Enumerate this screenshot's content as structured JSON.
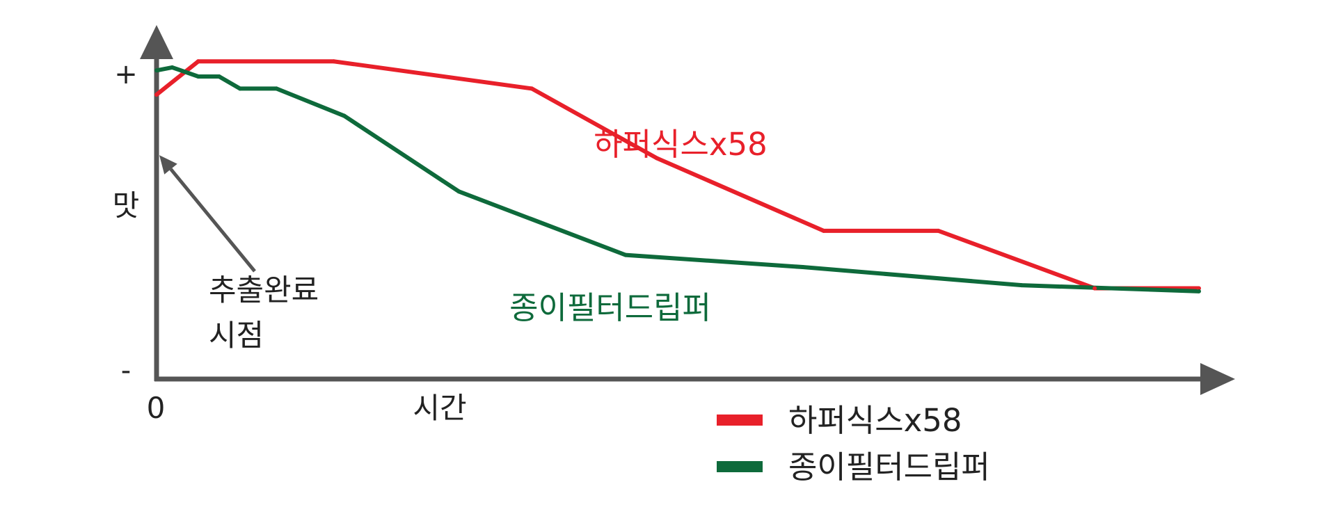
{
  "chart_data": {
    "type": "line",
    "title": "",
    "xlabel": "시간",
    "ylabel": "맛",
    "y_top_label": "+",
    "y_bottom_label": "-",
    "x_origin_label": "0",
    "xlim": [
      0,
      100
    ],
    "ylim": [
      0,
      100
    ],
    "grid": false,
    "legend_position": "bottom-right",
    "annotation": {
      "line1": "추출완료",
      "line2": "시점",
      "points_to": [
        0,
        74
      ]
    },
    "series": [
      {
        "name": "하퍼식스x58",
        "color": "#e8202a",
        "inline_label": "하퍼식스x58",
        "x": [
          0,
          4,
          17,
          36,
          48,
          64,
          75,
          90,
          100
        ],
        "y": [
          94,
          105,
          105,
          96,
          73,
          49,
          49,
          30,
          30
        ]
      },
      {
        "name": "종이필터드립퍼",
        "color": "#0e6a3b",
        "inline_label": "종이필터드립퍼",
        "x": [
          0,
          1.5,
          4,
          6,
          8,
          11.5,
          18,
          29,
          45,
          62,
          83,
          100
        ],
        "y": [
          102,
          103,
          100,
          100,
          96,
          96,
          87,
          62,
          41,
          37,
          31,
          29
        ]
      }
    ]
  }
}
